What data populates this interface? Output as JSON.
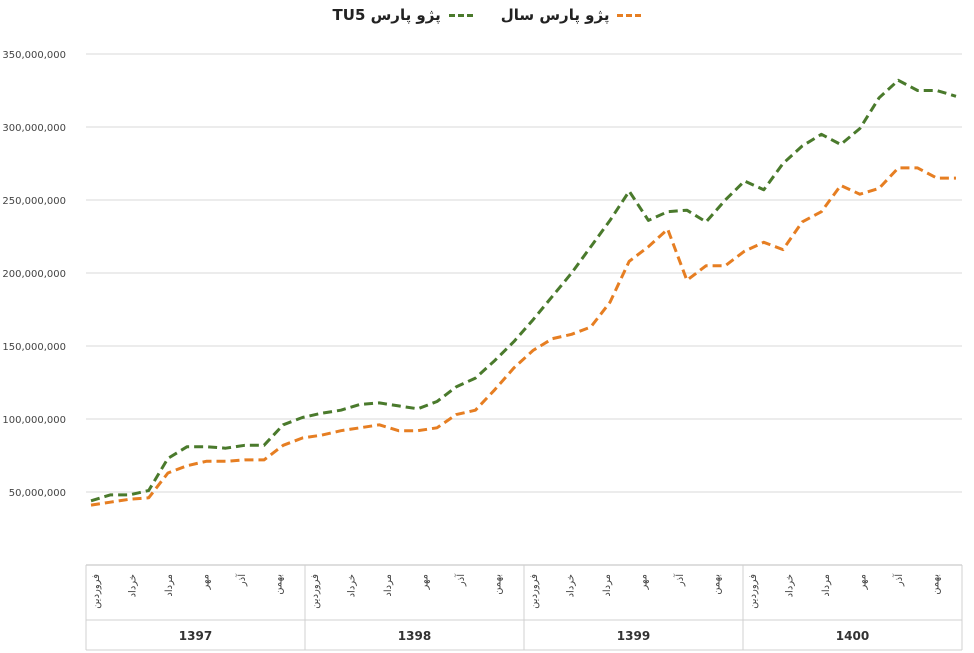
{
  "chart_data": {
    "type": "line",
    "legend": [
      {
        "label": "پژو پارس سال",
        "color": "#e67e22"
      },
      {
        "label": "پژو پارس TU5",
        "color": "#4a7a2c"
      }
    ],
    "y_ticks": [
      "",
      "50,000,000",
      "100,000,000",
      "150,000,000",
      "200,000,000",
      "250,000,000",
      "300,000,000",
      "350,000,000"
    ],
    "ylim": [
      0,
      350000000
    ],
    "grid": true,
    "years": [
      {
        "label": "1397",
        "months": [
          "فروردین",
          "خرداد",
          "مرداد",
          "مهر",
          "آذر",
          "بهمن"
        ]
      },
      {
        "label": "1398",
        "months": [
          "فروردین",
          "خرداد",
          "مرداد",
          "مهر",
          "آذر",
          "بهمن"
        ]
      },
      {
        "label": "1399",
        "months": [
          "فروردین",
          "خرداد",
          "مرداد",
          "مهر",
          "آذر",
          "بهمن"
        ]
      },
      {
        "label": "1400",
        "months": [
          "فروردین",
          "خرداد",
          "مرداد",
          "مهر",
          "آذر",
          "بهمن"
        ]
      }
    ],
    "series": [
      {
        "name": "پژو پارس TU5",
        "color": "#4a7a2c",
        "values": [
          44000000,
          48000000,
          48000000,
          51000000,
          73000000,
          81000000,
          81000000,
          80000000,
          82000000,
          82000000,
          96000000,
          101000000,
          104000000,
          106000000,
          110000000,
          111000000,
          109000000,
          107000000,
          112000000,
          122000000,
          128000000,
          140000000,
          153000000,
          168000000,
          184000000,
          200000000,
          218000000,
          236000000,
          256000000,
          236000000,
          242000000,
          243000000,
          235000000,
          250000000,
          263000000,
          257000000,
          275000000,
          287000000,
          295000000,
          288000000,
          299000000,
          320000000,
          332000000,
          325000000,
          325000000,
          321000000
        ]
      },
      {
        "name": "پژو پارس سال",
        "color": "#e67e22",
        "values": [
          41000000,
          43000000,
          45000000,
          46000000,
          63000000,
          68000000,
          71000000,
          71000000,
          72000000,
          72000000,
          82000000,
          87000000,
          89000000,
          92000000,
          94000000,
          96000000,
          92000000,
          92000000,
          94000000,
          103000000,
          106000000,
          120000000,
          135000000,
          147000000,
          155000000,
          158000000,
          163000000,
          180000000,
          208000000,
          218000000,
          230000000,
          195000000,
          205000000,
          205000000,
          215000000,
          221000000,
          216000000,
          235000000,
          242000000,
          260000000,
          254000000,
          258000000,
          272000000,
          272000000,
          265000000,
          265000000
        ]
      }
    ]
  }
}
